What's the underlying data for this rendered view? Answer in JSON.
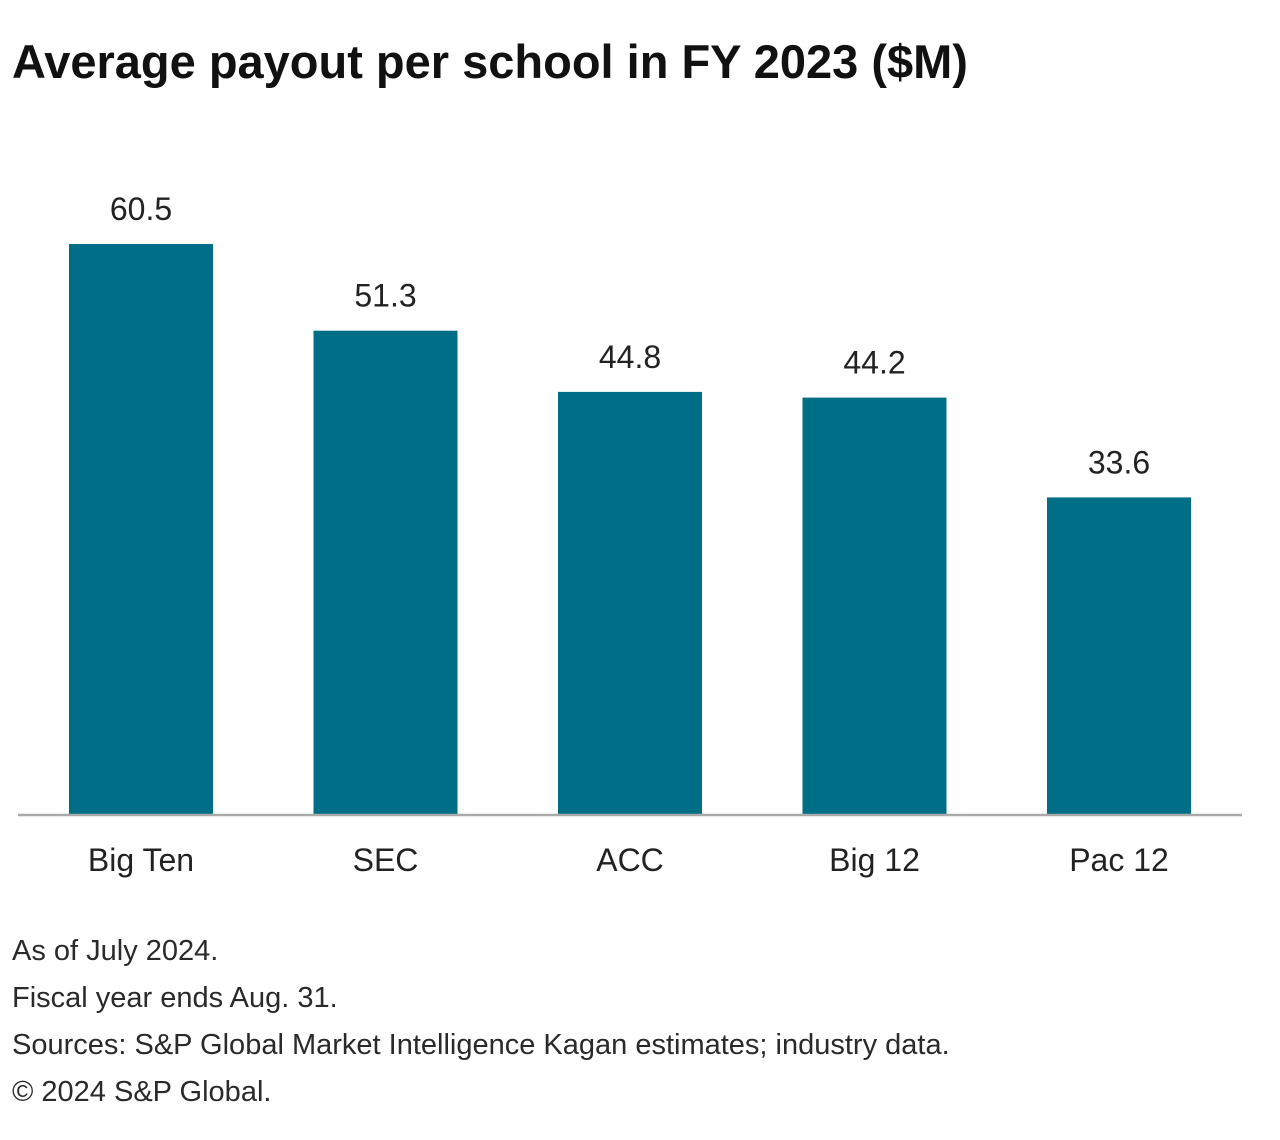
{
  "title": "Average payout per school in FY 2023 ($M)",
  "chart_data": {
    "type": "bar",
    "title": "Average payout per school in FY 2023 ($M)",
    "categories": [
      "Big Ten",
      "SEC",
      "ACC",
      "Big 12",
      "Pac 12"
    ],
    "values": [
      60.5,
      51.3,
      44.8,
      44.2,
      33.6
    ],
    "value_labels": [
      "60.5",
      "51.3",
      "44.8",
      "44.2",
      "33.6"
    ],
    "xlabel": "",
    "ylabel": "",
    "ylim": [
      0,
      60.5
    ],
    "grid": false,
    "bar_color": "#006e87",
    "axis_color": "#aaaaaa"
  },
  "footnotes": {
    "as_of": "As of July 2024.",
    "fiscal_year": "Fiscal year ends Aug. 31.",
    "sources": "Sources: S&P Global Market Intelligence Kagan estimates; industry data.",
    "copyright": "© 2024 S&P Global."
  }
}
